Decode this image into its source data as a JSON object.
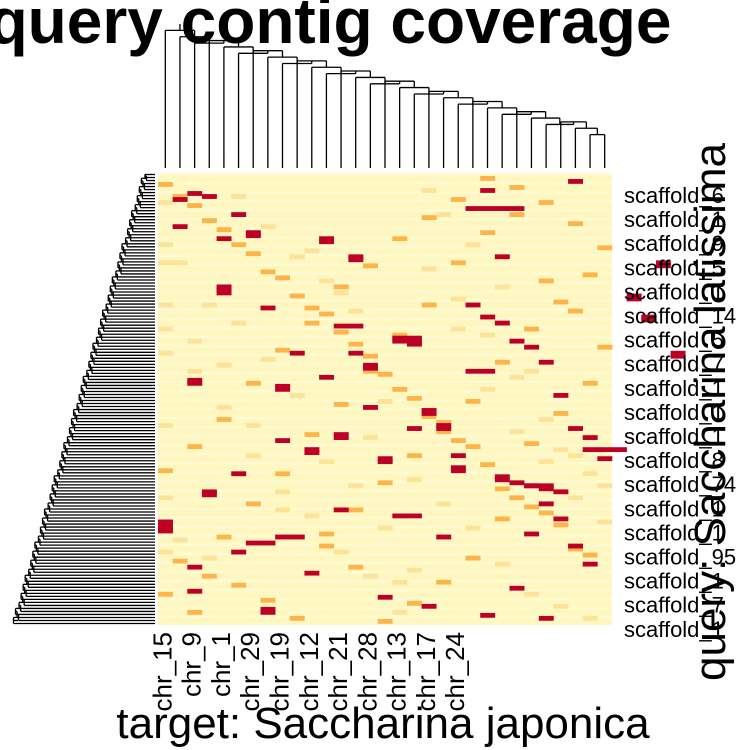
{
  "chart_data": {
    "type": "heatmap",
    "title": "query contig coverage",
    "xlabel": "target: Saccharina japonica",
    "ylabel": "query: Saccharina latissima",
    "column_labels": [
      "chr_15",
      "chr_9",
      "chr_1",
      "chr_29",
      "chr_19",
      "chr_12",
      "chr_21",
      "chr_28",
      "chr_13",
      "chr_17",
      "chr_24"
    ],
    "row_labels": [
      "scaffold_6",
      "scaffold_1",
      "scaffold_9",
      "scaffold_5",
      "scaffold_1",
      "scaffold_14",
      "scaffold_5",
      "scaffold_7",
      "scaffold_1",
      "scaffold_1",
      "scaffold_1",
      "scaffold_8",
      "scaffold_74",
      "scaffold_1",
      "scaffold_1",
      "scaffold_95",
      "scaffold_1",
      "scaffold_7",
      "scaffold_1"
    ],
    "num_columns": 31,
    "num_rows": 150,
    "color_scale": {
      "low": "#fff7c0",
      "mid": "#fdb44b",
      "high": "#bd0026"
    },
    "high_cells": [
      [
        1,
        116
      ],
      [
        1,
        117
      ],
      [
        1,
        118
      ],
      [
        1,
        119
      ],
      [
        3,
        69
      ],
      [
        3,
        70
      ],
      [
        3,
        139
      ],
      [
        4,
        106
      ],
      [
        4,
        107
      ],
      [
        5,
        38
      ],
      [
        5,
        39
      ],
      [
        5,
        40
      ],
      [
        12,
        22
      ],
      [
        12,
        23
      ],
      [
        13,
        87
      ],
      [
        13,
        88
      ],
      [
        14,
        28
      ],
      [
        14,
        29
      ],
      [
        9,
        71
      ],
      [
        9,
        72
      ],
      [
        8,
        145
      ],
      [
        8,
        146
      ],
      [
        7,
        20
      ],
      [
        7,
        21
      ],
      [
        6,
        100
      ],
      [
        9,
        121
      ],
      [
        10,
        121
      ],
      [
        7,
        123
      ],
      [
        8,
        123
      ],
      [
        17,
        55
      ],
      [
        17,
        56
      ],
      [
        18,
        55
      ],
      [
        18,
        56
      ],
      [
        18,
        57
      ],
      [
        15,
        64
      ],
      [
        15,
        65
      ],
      [
        14,
        51
      ],
      [
        13,
        51
      ],
      [
        19,
        79
      ],
      [
        19,
        80
      ],
      [
        20,
        84
      ],
      [
        20,
        85
      ],
      [
        21,
        98
      ],
      [
        21,
        99
      ],
      [
        16,
        95
      ],
      [
        16,
        96
      ],
      [
        11,
        92
      ],
      [
        11,
        93
      ],
      [
        17,
        114
      ],
      [
        18,
        114
      ],
      [
        22,
        12
      ],
      [
        23,
        12
      ],
      [
        24,
        12
      ],
      [
        25,
        12
      ],
      [
        23,
        6
      ],
      [
        24,
        28
      ],
      [
        26,
        104
      ],
      [
        27,
        104
      ],
      [
        28,
        115
      ],
      [
        29,
        3
      ],
      [
        30,
        92
      ],
      [
        31,
        92
      ],
      [
        32,
        92
      ],
      [
        33,
        41
      ],
      [
        33,
        42
      ],
      [
        34,
        48
      ],
      [
        34,
        49
      ],
      [
        35,
        30
      ],
      [
        35,
        31
      ],
      [
        36,
        60
      ],
      [
        36,
        61
      ],
      [
        22,
        66
      ],
      [
        23,
        66
      ],
      [
        24,
        102
      ],
      [
        25,
        103
      ],
      [
        26,
        104
      ],
      [
        27,
        105
      ],
      [
        28,
        106
      ],
      [
        2,
        9
      ],
      [
        3,
        7
      ],
      [
        4,
        8
      ],
      [
        6,
        14
      ],
      [
        8,
        45
      ],
      [
        10,
        60
      ],
      [
        12,
        68
      ],
      [
        15,
        78
      ],
      [
        18,
        85
      ],
      [
        21,
        94
      ],
      [
        24,
        101
      ],
      [
        27,
        110
      ],
      [
        29,
        124
      ],
      [
        30,
        130
      ],
      [
        11,
        133
      ],
      [
        16,
        141
      ],
      [
        6,
        126
      ],
      [
        3,
        131
      ],
      [
        19,
        144
      ],
      [
        23,
        147
      ],
      [
        27,
        148
      ],
      [
        25,
        138
      ],
      [
        20,
        121
      ],
      [
        9,
        89
      ],
      [
        13,
        112
      ],
      [
        29,
        85
      ],
      [
        30,
        88
      ],
      [
        31,
        95
      ],
      [
        26,
        120
      ],
      [
        28,
        74
      ],
      [
        14,
        60
      ],
      [
        2,
        18
      ],
      [
        5,
        22
      ],
      [
        22,
        44
      ],
      [
        23,
        48
      ],
      [
        24,
        50
      ],
      [
        25,
        56
      ],
      [
        26,
        58
      ],
      [
        27,
        63
      ]
    ],
    "mid_cells": [
      [
        1,
        4
      ],
      [
        2,
        8
      ],
      [
        3,
        11
      ],
      [
        4,
        16
      ],
      [
        5,
        19
      ],
      [
        6,
        24
      ],
      [
        7,
        27
      ],
      [
        8,
        33
      ],
      [
        9,
        35
      ],
      [
        10,
        41
      ],
      [
        11,
        45
      ],
      [
        12,
        47
      ],
      [
        13,
        53
      ],
      [
        14,
        57
      ],
      [
        15,
        61
      ],
      [
        16,
        67
      ],
      [
        17,
        72
      ],
      [
        18,
        75
      ],
      [
        19,
        81
      ],
      [
        20,
        86
      ],
      [
        21,
        89
      ],
      [
        22,
        91
      ],
      [
        23,
        97
      ],
      [
        24,
        105
      ],
      [
        25,
        108
      ],
      [
        26,
        111
      ],
      [
        27,
        113
      ],
      [
        28,
        117
      ],
      [
        29,
        125
      ],
      [
        30,
        127
      ],
      [
        2,
        129
      ],
      [
        4,
        134
      ],
      [
        6,
        137
      ],
      [
        8,
        142
      ],
      [
        10,
        148
      ],
      [
        12,
        120
      ],
      [
        14,
        112
      ],
      [
        16,
        103
      ],
      [
        18,
        94
      ],
      [
        20,
        83
      ],
      [
        22,
        76
      ],
      [
        24,
        63
      ],
      [
        26,
        52
      ],
      [
        28,
        43
      ],
      [
        30,
        34
      ],
      [
        31,
        25
      ],
      [
        29,
        17
      ],
      [
        27,
        10
      ],
      [
        25,
        5
      ],
      [
        23,
        2
      ],
      [
        21,
        9
      ],
      [
        19,
        15
      ],
      [
        17,
        22
      ],
      [
        15,
        31
      ],
      [
        13,
        38
      ],
      [
        11,
        50
      ],
      [
        9,
        59
      ],
      [
        7,
        70
      ],
      [
        5,
        82
      ],
      [
        3,
        91
      ],
      [
        1,
        99
      ],
      [
        1,
        140
      ],
      [
        3,
        146
      ],
      [
        5,
        121
      ],
      [
        7,
        110
      ],
      [
        9,
        100
      ],
      [
        11,
        87
      ],
      [
        13,
        77
      ],
      [
        15,
        66
      ],
      [
        17,
        54
      ],
      [
        19,
        44
      ],
      [
        21,
        30
      ],
      [
        23,
        20
      ],
      [
        25,
        14
      ],
      [
        27,
        36
      ],
      [
        29,
        46
      ],
      [
        31,
        58
      ],
      [
        30,
        70
      ],
      [
        28,
        80
      ],
      [
        26,
        90
      ],
      [
        24,
        115
      ],
      [
        22,
        128
      ],
      [
        20,
        136
      ],
      [
        18,
        143
      ],
      [
        16,
        149
      ],
      [
        14,
        131
      ],
      [
        12,
        124
      ]
    ],
    "light_cells": [
      [
        1,
        10
      ],
      [
        2,
        30
      ],
      [
        4,
        44
      ],
      [
        6,
        50
      ],
      [
        8,
        62
      ],
      [
        10,
        74
      ],
      [
        12,
        96
      ],
      [
        14,
        104
      ],
      [
        16,
        118
      ],
      [
        18,
        132
      ],
      [
        20,
        14
      ],
      [
        22,
        24
      ],
      [
        24,
        38
      ],
      [
        26,
        66
      ],
      [
        28,
        92
      ],
      [
        30,
        100
      ],
      [
        3,
        56
      ],
      [
        5,
        64
      ],
      [
        7,
        84
      ],
      [
        9,
        112
      ],
      [
        11,
        26
      ],
      [
        13,
        40
      ],
      [
        15,
        88
      ],
      [
        17,
        136
      ],
      [
        19,
        6
      ],
      [
        21,
        52
      ],
      [
        23,
        72
      ],
      [
        25,
        86
      ],
      [
        27,
        96
      ],
      [
        29,
        108
      ],
      [
        31,
        116
      ],
      [
        2,
        122
      ],
      [
        4,
        128
      ],
      [
        6,
        8
      ],
      [
        8,
        18
      ],
      [
        10,
        28
      ],
      [
        12,
        36
      ],
      [
        14,
        46
      ],
      [
        16,
        76
      ],
      [
        18,
        102
      ],
      [
        20,
        110
      ],
      [
        22,
        118
      ],
      [
        24,
        130
      ],
      [
        26,
        140
      ],
      [
        28,
        144
      ],
      [
        30,
        148
      ],
      [
        1,
        60
      ],
      [
        3,
        66
      ],
      [
        5,
        78
      ],
      [
        7,
        94
      ],
      [
        9,
        106
      ],
      [
        11,
        114
      ],
      [
        13,
        126
      ],
      [
        15,
        134
      ],
      [
        17,
        146
      ],
      [
        19,
        32
      ],
      [
        21,
        42
      ],
      [
        23,
        54
      ],
      [
        25,
        68
      ],
      [
        27,
        82
      ],
      [
        29,
        94
      ],
      [
        31,
        104
      ],
      [
        1,
        24
      ],
      [
        1,
        30
      ],
      [
        1,
        44
      ],
      [
        1,
        52
      ],
      [
        1,
        84
      ],
      [
        1,
        108
      ],
      [
        1,
        126
      ]
    ]
  }
}
